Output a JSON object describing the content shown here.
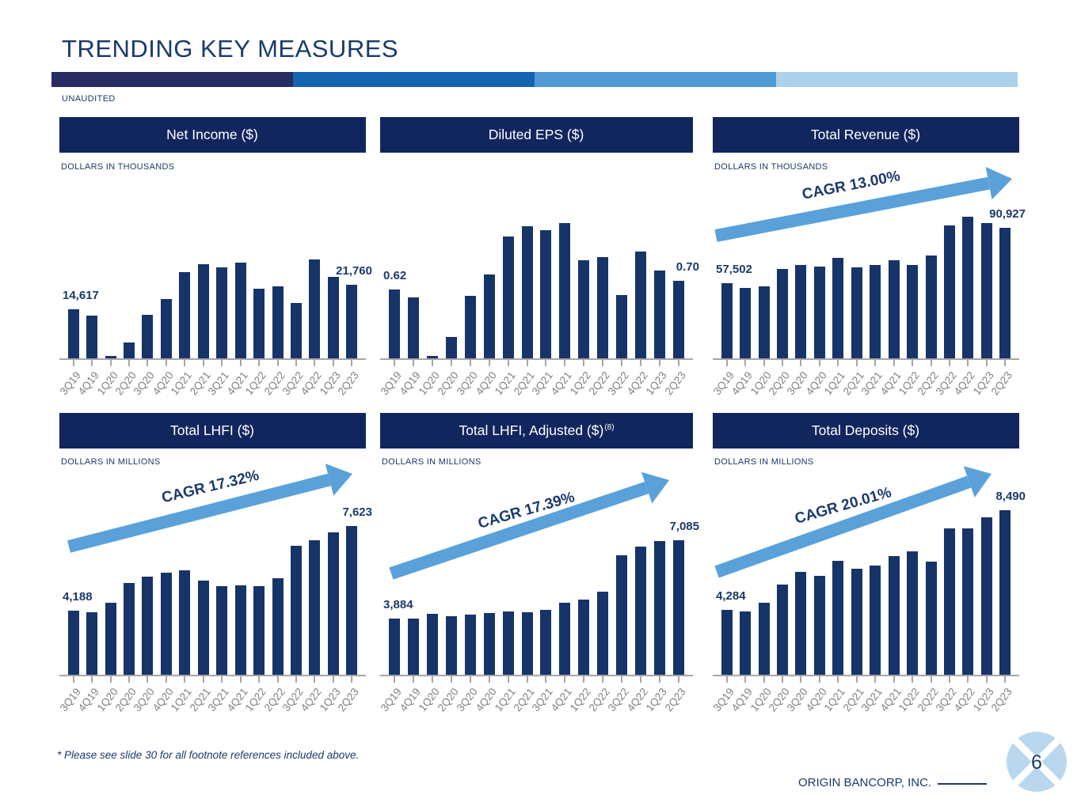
{
  "page": {
    "title": "TRENDING KEY MEASURES",
    "unaudited_label": "UNAUDITED",
    "footnote": "* Please see slide 30 for all footnote references included above.",
    "brand": "ORIGIN BANCORP, INC.",
    "page_number": "6",
    "colors": {
      "navy": "#1b3a6b",
      "band": "#12265e",
      "bar": "#163468",
      "arrow": "#5aa1d9",
      "axis": "#a6a6a6",
      "ticklabel": "#808080",
      "logo_fill": "#b9d7ee",
      "gradient": [
        "#272c62",
        "#1464b0",
        "#4e9bd4",
        "#abd1ec"
      ]
    }
  },
  "chart_data": [
    {
      "type": "bar",
      "title": "Net Income ($)",
      "title_sup": "",
      "ylabel": "DOLLARS IN THOUSANDS",
      "xlabel": "",
      "grid": false,
      "legend": "none",
      "categories": [
        "3Q19",
        "4Q19",
        "1Q20",
        "2Q20",
        "3Q20",
        "4Q20",
        "1Q21",
        "2Q21",
        "3Q21",
        "4Q21",
        "1Q22",
        "2Q22",
        "3Q22",
        "4Q22",
        "1Q23",
        "2Q23"
      ],
      "values": [
        14617,
        12600,
        960,
        4900,
        12950,
        17500,
        25300,
        27600,
        26800,
        28100,
        20500,
        21200,
        16400,
        29000,
        23900,
        21760
      ],
      "first_label": "14,617",
      "last_label": "21,760",
      "annotation": "",
      "ylim": [
        0,
        29040
      ]
    },
    {
      "type": "bar",
      "title": "Diluted EPS ($)",
      "title_sup": "",
      "ylabel": "",
      "xlabel": "",
      "grid": false,
      "legend": "none",
      "categories": [
        "3Q19",
        "4Q19",
        "1Q20",
        "2Q20",
        "3Q20",
        "4Q20",
        "1Q21",
        "2Q21",
        "3Q21",
        "4Q21",
        "1Q22",
        "2Q22",
        "3Q22",
        "4Q22",
        "1Q23",
        "2Q23"
      ],
      "values": [
        0.62,
        0.55,
        0.03,
        0.2,
        0.56,
        0.75,
        1.09,
        1.18,
        1.15,
        1.21,
        0.88,
        0.91,
        0.57,
        0.96,
        0.79,
        0.7
      ],
      "first_label": "0.62",
      "last_label": "0.70",
      "annotation": "",
      "ylim": [
        0,
        1.21
      ]
    },
    {
      "type": "bar",
      "title": "Total Revenue ($)",
      "title_sup": "",
      "ylabel": "DOLLARS IN THOUSANDS",
      "xlabel": "",
      "grid": false,
      "legend": "none",
      "categories": [
        "3Q19",
        "4Q19",
        "1Q20",
        "2Q20",
        "3Q20",
        "4Q20",
        "1Q21",
        "2Q21",
        "3Q21",
        "4Q21",
        "1Q22",
        "2Q22",
        "3Q22",
        "4Q22",
        "1Q23",
        "2Q23"
      ],
      "values": [
        57502,
        54600,
        55600,
        65900,
        68600,
        67300,
        72600,
        67100,
        68400,
        71200,
        68400,
        74200,
        92700,
        97800,
        93800,
        90927
      ],
      "first_label": "57,502",
      "last_label": "90,927",
      "annotation": "CAGR 13.00%",
      "ylim": [
        11220,
        97800
      ]
    },
    {
      "type": "bar",
      "title": "Total LHFI ($)",
      "title_sup": "",
      "ylabel": "DOLLARS IN MILLIONS",
      "xlabel": "",
      "grid": false,
      "legend": "none",
      "categories": [
        "3Q19",
        "4Q19",
        "1Q20",
        "2Q20",
        "3Q20",
        "4Q20",
        "1Q21",
        "2Q21",
        "3Q21",
        "4Q21",
        "1Q22",
        "2Q22",
        "3Q22",
        "4Q22",
        "1Q23",
        "2Q23"
      ],
      "values": [
        4188,
        4124,
        4509,
        5315,
        5581,
        5732,
        5816,
        5421,
        5174,
        5219,
        5174,
        5495,
        6811,
        7045,
        7366,
        7623
      ],
      "first_label": "4,188",
      "last_label": "7,623",
      "annotation": "CAGR 17.32%",
      "ylim": [
        1556,
        7623
      ]
    },
    {
      "type": "bar",
      "title": "Total LHFI, Adjusted ($)",
      "title_sup": "(8)",
      "ylabel": "DOLLARS IN MILLIONS",
      "xlabel": "",
      "grid": false,
      "legend": "none",
      "categories": [
        "3Q19",
        "4Q19",
        "1Q20",
        "2Q20",
        "3Q20",
        "4Q20",
        "1Q21",
        "2Q21",
        "3Q21",
        "4Q21",
        "1Q22",
        "2Q22",
        "3Q22",
        "4Q22",
        "1Q23",
        "2Q23"
      ],
      "values": [
        3884,
        3880,
        4059,
        3962,
        4046,
        4111,
        4156,
        4143,
        4241,
        4533,
        4662,
        4977,
        6459,
        6815,
        7062,
        7085
      ],
      "first_label": "3,884",
      "last_label": "7,085",
      "annotation": "CAGR 17.39%",
      "ylim": [
        1539,
        7085
      ]
    },
    {
      "type": "bar",
      "title": "Total Deposits ($)",
      "title_sup": "",
      "ylabel": "DOLLARS IN MILLIONS",
      "xlabel": "",
      "grid": false,
      "legend": "none",
      "categories": [
        "3Q19",
        "4Q19",
        "1Q20",
        "2Q20",
        "3Q20",
        "4Q20",
        "1Q21",
        "2Q21",
        "3Q21",
        "4Q21",
        "1Q22",
        "2Q22",
        "3Q22",
        "4Q22",
        "1Q23",
        "2Q23"
      ],
      "values": [
        4284,
        4220,
        4574,
        5350,
        5906,
        5739,
        6349,
        6016,
        6172,
        6572,
        6758,
        6315,
        7724,
        7740,
        8203,
        8490
      ],
      "first_label": "4,284",
      "last_label": "8,490",
      "annotation": "CAGR 20.01%",
      "ylim": [
        1520,
        8490
      ]
    }
  ]
}
